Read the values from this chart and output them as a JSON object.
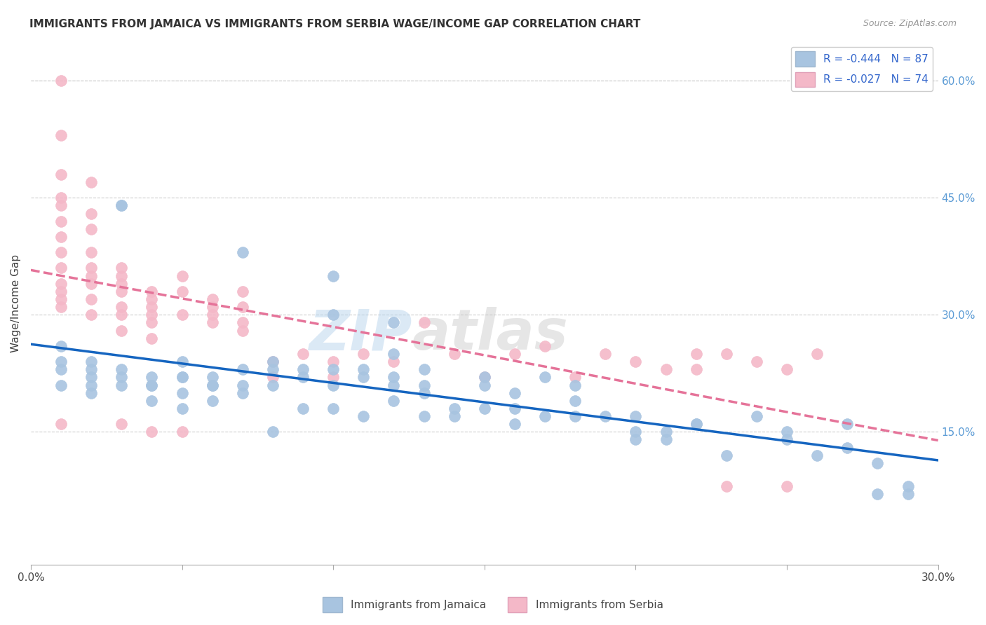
{
  "title": "IMMIGRANTS FROM JAMAICA VS IMMIGRANTS FROM SERBIA WAGE/INCOME GAP CORRELATION CHART",
  "source": "Source: ZipAtlas.com",
  "ylabel": "Wage/Income Gap",
  "right_yticks": [
    "60.0%",
    "45.0%",
    "30.0%",
    "15.0%"
  ],
  "right_ytick_vals": [
    0.6,
    0.45,
    0.3,
    0.15
  ],
  "xlim": [
    0.0,
    0.3
  ],
  "ylim": [
    -0.02,
    0.65
  ],
  "legend_jamaica": "R = -0.444   N = 87",
  "legend_serbia": "R = -0.027   N = 74",
  "watermark_zip": "ZIP",
  "watermark_atlas": "atlas",
  "jamaica_color": "#a8c4e0",
  "serbia_color": "#f4b8c8",
  "jamaica_line_color": "#1565c0",
  "serbia_line_color": "#e57399",
  "background_color": "#ffffff",
  "jamaica_scatter_x": [
    0.01,
    0.01,
    0.01,
    0.01,
    0.02,
    0.02,
    0.02,
    0.02,
    0.02,
    0.03,
    0.03,
    0.03,
    0.03,
    0.03,
    0.04,
    0.04,
    0.04,
    0.04,
    0.05,
    0.05,
    0.05,
    0.05,
    0.05,
    0.06,
    0.06,
    0.06,
    0.06,
    0.07,
    0.07,
    0.07,
    0.07,
    0.08,
    0.08,
    0.08,
    0.08,
    0.09,
    0.09,
    0.09,
    0.1,
    0.1,
    0.1,
    0.1,
    0.1,
    0.11,
    0.11,
    0.11,
    0.12,
    0.12,
    0.12,
    0.12,
    0.12,
    0.13,
    0.13,
    0.13,
    0.13,
    0.14,
    0.14,
    0.15,
    0.15,
    0.15,
    0.16,
    0.16,
    0.16,
    0.17,
    0.17,
    0.18,
    0.18,
    0.18,
    0.19,
    0.2,
    0.2,
    0.2,
    0.21,
    0.21,
    0.22,
    0.22,
    0.23,
    0.24,
    0.25,
    0.25,
    0.26,
    0.27,
    0.27,
    0.28,
    0.28,
    0.29,
    0.29
  ],
  "jamaica_scatter_y": [
    0.26,
    0.24,
    0.23,
    0.21,
    0.24,
    0.23,
    0.22,
    0.21,
    0.2,
    0.44,
    0.44,
    0.23,
    0.22,
    0.21,
    0.22,
    0.21,
    0.21,
    0.19,
    0.24,
    0.22,
    0.22,
    0.2,
    0.18,
    0.22,
    0.21,
    0.21,
    0.19,
    0.38,
    0.23,
    0.21,
    0.2,
    0.24,
    0.23,
    0.21,
    0.15,
    0.23,
    0.22,
    0.18,
    0.35,
    0.3,
    0.23,
    0.21,
    0.18,
    0.23,
    0.22,
    0.17,
    0.29,
    0.25,
    0.22,
    0.21,
    0.19,
    0.23,
    0.21,
    0.2,
    0.17,
    0.18,
    0.17,
    0.22,
    0.21,
    0.18,
    0.2,
    0.18,
    0.16,
    0.22,
    0.17,
    0.21,
    0.19,
    0.17,
    0.17,
    0.17,
    0.15,
    0.14,
    0.15,
    0.14,
    0.16,
    0.16,
    0.12,
    0.17,
    0.15,
    0.14,
    0.12,
    0.16,
    0.13,
    0.11,
    0.07,
    0.08,
    0.07
  ],
  "serbia_scatter_x": [
    0.01,
    0.01,
    0.01,
    0.01,
    0.01,
    0.01,
    0.01,
    0.01,
    0.01,
    0.01,
    0.01,
    0.01,
    0.01,
    0.01,
    0.02,
    0.02,
    0.02,
    0.02,
    0.02,
    0.02,
    0.02,
    0.02,
    0.02,
    0.03,
    0.03,
    0.03,
    0.03,
    0.03,
    0.03,
    0.03,
    0.03,
    0.04,
    0.04,
    0.04,
    0.04,
    0.04,
    0.04,
    0.04,
    0.05,
    0.05,
    0.05,
    0.05,
    0.06,
    0.06,
    0.06,
    0.06,
    0.07,
    0.07,
    0.07,
    0.07,
    0.08,
    0.08,
    0.09,
    0.1,
    0.1,
    0.11,
    0.12,
    0.13,
    0.14,
    0.15,
    0.16,
    0.17,
    0.18,
    0.19,
    0.2,
    0.21,
    0.22,
    0.22,
    0.23,
    0.23,
    0.24,
    0.25,
    0.25,
    0.26
  ],
  "serbia_scatter_y": [
    0.6,
    0.53,
    0.48,
    0.45,
    0.44,
    0.42,
    0.4,
    0.38,
    0.36,
    0.34,
    0.33,
    0.32,
    0.31,
    0.16,
    0.47,
    0.43,
    0.41,
    0.38,
    0.36,
    0.35,
    0.34,
    0.32,
    0.3,
    0.36,
    0.35,
    0.34,
    0.33,
    0.31,
    0.3,
    0.28,
    0.16,
    0.33,
    0.32,
    0.31,
    0.3,
    0.29,
    0.27,
    0.15,
    0.35,
    0.33,
    0.3,
    0.15,
    0.32,
    0.31,
    0.3,
    0.29,
    0.33,
    0.31,
    0.28,
    0.29,
    0.24,
    0.22,
    0.25,
    0.24,
    0.22,
    0.25,
    0.24,
    0.29,
    0.25,
    0.22,
    0.25,
    0.26,
    0.22,
    0.25,
    0.24,
    0.23,
    0.25,
    0.23,
    0.25,
    0.08,
    0.24,
    0.23,
    0.08,
    0.25
  ]
}
